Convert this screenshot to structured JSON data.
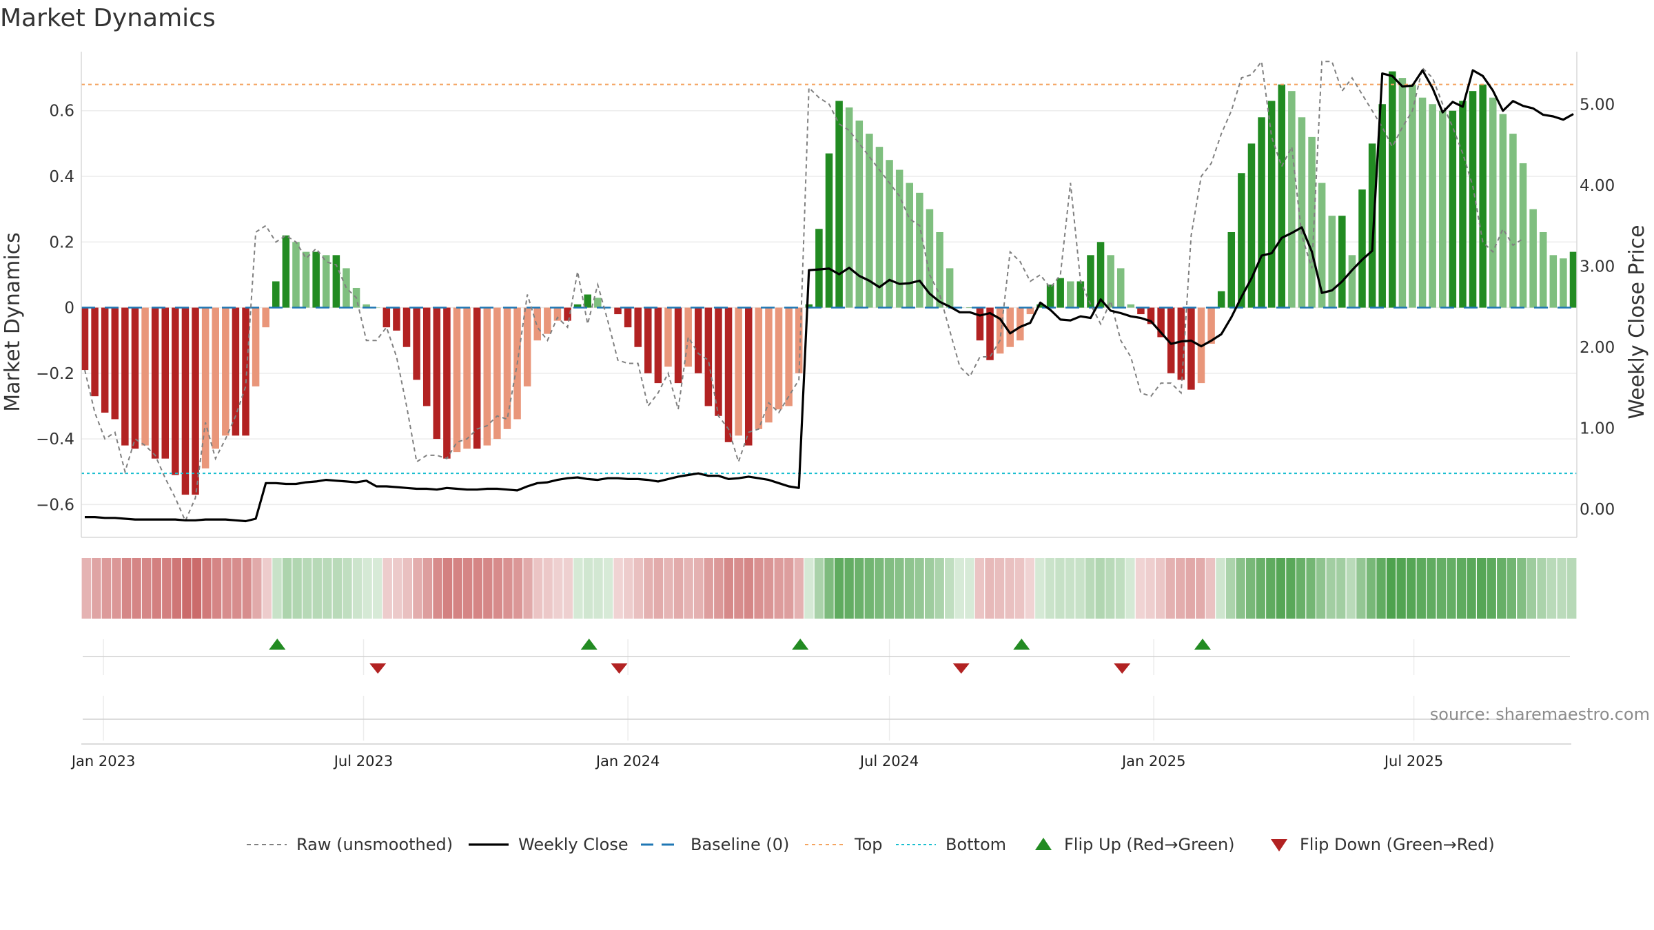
{
  "title": "Market Dynamics",
  "source": "source: sharemaestro.com",
  "colors": {
    "strong_green": "#228b22",
    "light_green": "#7fbf7f",
    "strong_red": "#b22222",
    "light_red": "#e9967a",
    "top_line": "#f4a460",
    "bottom_line": "#17becf",
    "baseline": "#1f77b4",
    "close": "#000000",
    "raw": "#808080"
  },
  "chart_data": {
    "type": "bar",
    "title": "Market Dynamics",
    "ylabel": "Market Dynamics",
    "y2label": "Weekly Close Price",
    "ylim": [
      -0.7,
      0.78
    ],
    "y2lim": [
      -0.35,
      5.65
    ],
    "yticks": [
      -0.6,
      -0.4,
      -0.2,
      0,
      0.2,
      0.4,
      0.6
    ],
    "ytick_labels": [
      "−0.6",
      "−0.4",
      "−0.2",
      "0",
      "0.2",
      "0.4",
      "0.6"
    ],
    "y2ticks": [
      0,
      1,
      2,
      3,
      4,
      5
    ],
    "y2tick_labels": [
      "0.00",
      "1.00",
      "2.00",
      "3.00",
      "4.00",
      "5.00"
    ],
    "x_start": "2022-12-19",
    "xticks": [
      "2023-01-01",
      "2023-07-01",
      "2024-01-01",
      "2024-07-01",
      "2025-01-01",
      "2025-07-01"
    ],
    "xtick_labels": [
      "Jan 2023",
      "Jul 2023",
      "Jan 2024",
      "Jul 2024",
      "Jan 2025",
      "Jul 2025"
    ],
    "top": 0.68,
    "bottom": -0.505,
    "baseline": 0,
    "smoothed": [
      -0.19,
      -0.27,
      -0.32,
      -0.34,
      -0.42,
      -0.43,
      -0.42,
      -0.46,
      -0.46,
      -0.51,
      -0.57,
      -0.57,
      -0.49,
      -0.43,
      -0.39,
      -0.39,
      -0.39,
      -0.24,
      -0.06,
      0.08,
      0.22,
      0.2,
      0.17,
      0.17,
      0.16,
      0.16,
      0.12,
      0.06,
      0.01,
      0,
      -0.06,
      -0.07,
      -0.12,
      -0.22,
      -0.3,
      -0.4,
      -0.46,
      -0.44,
      -0.43,
      -0.43,
      -0.42,
      -0.4,
      -0.37,
      -0.34,
      -0.24,
      -0.1,
      -0.08,
      -0.04,
      -0.04,
      0.01,
      0.04,
      0.03,
      0,
      -0.02,
      -0.06,
      -0.12,
      -0.2,
      -0.23,
      -0.18,
      -0.23,
      -0.18,
      -0.2,
      -0.3,
      -0.33,
      -0.41,
      -0.39,
      -0.42,
      -0.37,
      -0.35,
      -0.31,
      -0.3,
      -0.2,
      0.01,
      0.24,
      0.47,
      0.63,
      0.61,
      0.57,
      0.53,
      0.49,
      0.45,
      0.42,
      0.38,
      0.35,
      0.3,
      0.23,
      0.12,
      0,
      0,
      -0.1,
      -0.16,
      -0.14,
      -0.12,
      -0.1,
      -0.02,
      0.01,
      0.07,
      0.09,
      0.08,
      0.08,
      0.16,
      0.2,
      0.16,
      0.12,
      0.01,
      -0.02,
      -0.05,
      -0.09,
      -0.2,
      -0.22,
      -0.25,
      -0.23,
      -0.11,
      0.05,
      0.23,
      0.41,
      0.5,
      0.58,
      0.63,
      0.68,
      0.66,
      0.58,
      0.52,
      0.38,
      0.28,
      0.28,
      0.16,
      0.36,
      0.5,
      0.62,
      0.72,
      0.7,
      0.68,
      0.64,
      0.62,
      0.6,
      0.6,
      0.63,
      0.66,
      0.68,
      0.64,
      0.59,
      0.53,
      0.44,
      0.3,
      0.23,
      0.16,
      0.15,
      0.17
    ],
    "raw": [
      -0.19,
      -0.32,
      -0.4,
      -0.38,
      -0.5,
      -0.4,
      -0.42,
      -0.45,
      -0.52,
      -0.58,
      -0.65,
      -0.58,
      -0.35,
      -0.46,
      -0.4,
      -0.33,
      -0.24,
      0.23,
      0.25,
      0.2,
      0.22,
      0.2,
      0.15,
      0.18,
      0.14,
      0.13,
      0.06,
      0.03,
      -0.1,
      -0.1,
      -0.06,
      -0.15,
      -0.3,
      -0.47,
      -0.45,
      -0.45,
      -0.46,
      -0.41,
      -0.4,
      -0.37,
      -0.36,
      -0.33,
      -0.34,
      -0.17,
      0.04,
      -0.06,
      -0.1,
      -0.03,
      -0.06,
      0.11,
      -0.05,
      0.07,
      -0.04,
      -0.16,
      -0.17,
      -0.17,
      -0.3,
      -0.26,
      -0.2,
      -0.31,
      -0.09,
      -0.14,
      -0.16,
      -0.33,
      -0.37,
      -0.47,
      -0.38,
      -0.37,
      -0.29,
      -0.32,
      -0.27,
      -0.22,
      0.67,
      0.64,
      0.62,
      0.56,
      0.54,
      0.5,
      0.46,
      0.42,
      0.38,
      0.34,
      0.27,
      0.25,
      0.1,
      0.04,
      -0.07,
      -0.18,
      -0.21,
      -0.15,
      -0.15,
      -0.1,
      0.17,
      0.14,
      0.08,
      0.1,
      0.06,
      0.1,
      0.38,
      0.08,
      0.01,
      -0.05,
      0.02,
      -0.1,
      -0.15,
      -0.26,
      -0.27,
      -0.23,
      -0.23,
      -0.26,
      0.22,
      0.4,
      0.44,
      0.53,
      0.6,
      0.7,
      0.71,
      0.75,
      0.52,
      0.43,
      0.49,
      0.22,
      0.12,
      0.75,
      0.75,
      0.66,
      0.7,
      0.65,
      0.6,
      0.55,
      0.49,
      0.55,
      0.6,
      0.73,
      0.7,
      0.62,
      0.55,
      0.47,
      0.37,
      0.2,
      0.17,
      0.24,
      0.19,
      0.21
    ],
    "close": [
      -0.1,
      -0.1,
      -0.11,
      -0.11,
      -0.12,
      -0.13,
      -0.13,
      -0.13,
      -0.13,
      -0.13,
      -0.14,
      -0.14,
      -0.13,
      -0.13,
      -0.13,
      -0.14,
      -0.15,
      -0.12,
      0.32,
      0.32,
      0.31,
      0.31,
      0.33,
      0.34,
      0.36,
      0.35,
      0.34,
      0.33,
      0.35,
      0.28,
      0.28,
      0.27,
      0.26,
      0.25,
      0.25,
      0.24,
      0.26,
      0.25,
      0.24,
      0.24,
      0.25,
      0.25,
      0.24,
      0.23,
      0.28,
      0.32,
      0.33,
      0.36,
      0.38,
      0.39,
      0.37,
      0.36,
      0.38,
      0.38,
      0.37,
      0.37,
      0.36,
      0.34,
      0.37,
      0.4,
      0.42,
      0.44,
      0.41,
      0.41,
      0.37,
      0.38,
      0.4,
      0.38,
      0.36,
      0.32,
      0.28,
      0.26,
      2.95,
      2.96,
      2.97,
      2.9,
      2.98,
      2.88,
      2.82,
      2.74,
      2.83,
      2.78,
      2.79,
      2.82,
      2.66,
      2.56,
      2.5,
      2.43,
      2.43,
      2.39,
      2.42,
      2.35,
      2.17,
      2.25,
      2.3,
      2.55,
      2.46,
      2.34,
      2.33,
      2.38,
      2.36,
      2.59,
      2.45,
      2.42,
      2.38,
      2.36,
      2.32,
      2.18,
      2.04,
      2.07,
      2.08,
      2.01,
      2.08,
      2.16,
      2.37,
      2.62,
      2.85,
      3.13,
      3.16,
      3.35,
      3.41,
      3.48,
      3.18,
      2.67,
      2.7,
      2.81,
      2.95,
      3.08,
      3.19,
      5.38,
      5.35,
      5.22,
      5.23,
      5.42,
      5.2,
      4.9,
      5.03,
      4.97,
      5.42,
      5.35,
      5.17,
      4.92,
      5.04,
      4.98,
      4.95,
      4.87,
      4.85,
      4.81,
      4.88
    ],
    "flip_up_weeks": [
      19,
      50,
      71,
      93,
      111
    ],
    "flip_down_weeks": [
      29,
      53,
      87,
      103
    ],
    "legend": [
      "Raw (unsmoothed)",
      "Weekly Close",
      "Baseline (0)",
      "Top",
      "Bottom",
      "Flip Up (Red→Green)",
      "Flip Down (Green→Red)"
    ]
  }
}
